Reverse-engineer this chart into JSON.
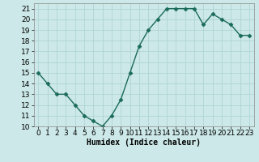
{
  "x": [
    0,
    1,
    2,
    3,
    4,
    5,
    6,
    7,
    8,
    9,
    10,
    11,
    12,
    13,
    14,
    15,
    16,
    17,
    18,
    19,
    20,
    21,
    22,
    23
  ],
  "y": [
    15,
    14,
    13,
    13,
    12,
    11,
    10.5,
    10,
    11,
    12.5,
    15,
    17.5,
    19,
    20,
    21,
    21,
    21,
    21,
    19.5,
    20.5,
    20,
    19.5,
    18.5,
    18.5
  ],
  "line_color": "#1a6b5a",
  "marker_color": "#1a6b5a",
  "bg_color": "#cce8e8",
  "grid_color": "#b0d4d4",
  "xlabel": "Humidex (Indice chaleur)",
  "ylim": [
    10,
    21.5
  ],
  "xlim": [
    -0.5,
    23.5
  ],
  "yticks": [
    10,
    11,
    12,
    13,
    14,
    15,
    16,
    17,
    18,
    19,
    20,
    21
  ],
  "xticks": [
    0,
    1,
    2,
    3,
    4,
    5,
    6,
    7,
    8,
    9,
    10,
    11,
    12,
    13,
    14,
    15,
    16,
    17,
    18,
    19,
    20,
    21,
    22,
    23
  ],
  "fontsize_label": 7,
  "fontsize_tick": 6.5
}
